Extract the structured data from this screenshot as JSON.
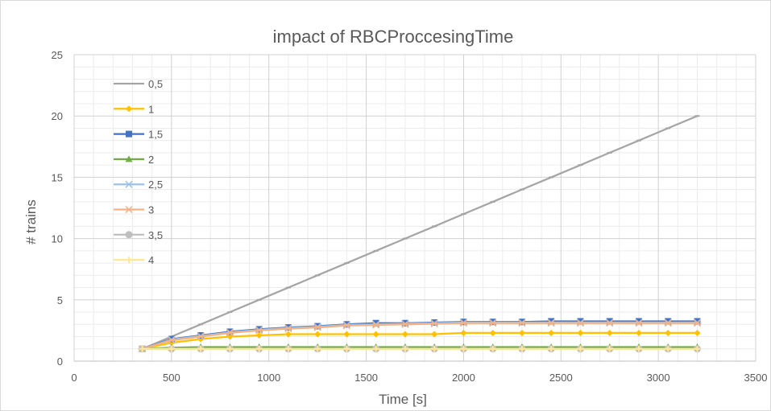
{
  "chart_data": {
    "type": "line",
    "title": "impact of RBCProccesingTime",
    "xlabel": "Time [s]",
    "ylabel": "# trains",
    "xlim": [
      0,
      3500
    ],
    "ylim": [
      0,
      25
    ],
    "x_ticks": [
      0,
      500,
      1000,
      1500,
      2000,
      2500,
      3000,
      3500
    ],
    "y_ticks": [
      0,
      5,
      10,
      15,
      20,
      25
    ],
    "grid": true,
    "legend_position": "top-left",
    "x": [
      350,
      500,
      650,
      800,
      950,
      1100,
      1250,
      1400,
      1550,
      1700,
      1850,
      2000,
      2150,
      2300,
      2450,
      2600,
      2750,
      2900,
      3050,
      3200
    ],
    "series": [
      {
        "name": "0,5",
        "color": "#a5a5a5",
        "marker": "dash",
        "values": [
          1,
          2,
          3,
          4,
          5,
          6,
          7,
          8,
          9,
          10,
          11,
          12,
          13,
          14,
          15,
          16,
          17,
          18,
          19,
          20
        ]
      },
      {
        "name": "1",
        "color": "#ffc000",
        "marker": "diamond",
        "values": [
          1,
          1.5,
          1.8,
          2.0,
          2.1,
          2.2,
          2.2,
          2.2,
          2.2,
          2.2,
          2.2,
          2.3,
          2.3,
          2.3,
          2.3,
          2.3,
          2.3,
          2.3,
          2.3,
          2.3
        ]
      },
      {
        "name": "1,5",
        "color": "#4472c4",
        "marker": "square",
        "values": [
          1,
          1.8,
          2.1,
          2.4,
          2.6,
          2.75,
          2.85,
          3.0,
          3.1,
          3.1,
          3.15,
          3.2,
          3.2,
          3.2,
          3.25,
          3.25,
          3.25,
          3.25,
          3.25,
          3.25
        ]
      },
      {
        "name": "2",
        "color": "#70ad47",
        "marker": "triangle",
        "values": [
          1,
          1.1,
          1.15,
          1.15,
          1.15,
          1.15,
          1.15,
          1.15,
          1.15,
          1.15,
          1.15,
          1.15,
          1.15,
          1.15,
          1.15,
          1.15,
          1.15,
          1.15,
          1.15,
          1.15
        ]
      },
      {
        "name": "2,5",
        "color": "#9dc3e6",
        "marker": "x",
        "values": [
          1,
          1.75,
          2.05,
          2.35,
          2.55,
          2.7,
          2.8,
          2.95,
          3.0,
          3.05,
          3.1,
          3.15,
          3.15,
          3.15,
          3.15,
          3.15,
          3.15,
          3.15,
          3.15,
          3.15
        ]
      },
      {
        "name": "3",
        "color": "#f4b183",
        "marker": "star",
        "values": [
          1,
          1.7,
          2.0,
          2.3,
          2.5,
          2.65,
          2.75,
          2.9,
          2.95,
          3.0,
          3.05,
          3.1,
          3.1,
          3.1,
          3.1,
          3.1,
          3.1,
          3.1,
          3.1,
          3.1
        ]
      },
      {
        "name": "3,5",
        "color": "#bfbfbf",
        "marker": "circle",
        "values": [
          1,
          1,
          1,
          1,
          1,
          1,
          1,
          1,
          1,
          1,
          1,
          1,
          1,
          1,
          1,
          1,
          1,
          1,
          1,
          1
        ]
      },
      {
        "name": "4",
        "color": "#ffe699",
        "marker": "plus",
        "values": [
          1,
          1,
          1,
          1,
          1,
          1,
          1,
          1,
          1,
          1,
          1,
          1,
          1,
          1,
          1,
          1,
          1,
          1,
          1,
          1
        ]
      }
    ]
  }
}
